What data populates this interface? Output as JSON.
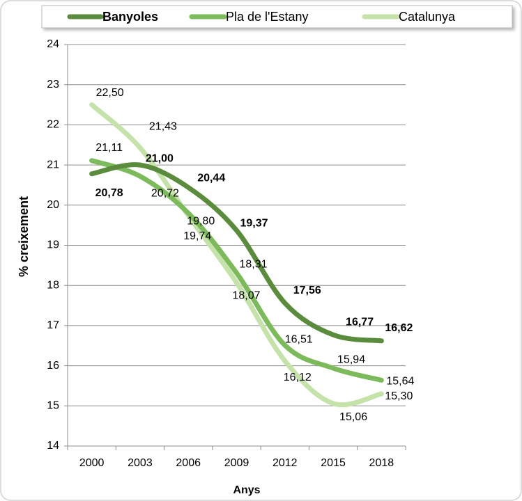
{
  "chart_data": {
    "type": "line",
    "x_label": "Anys",
    "y_label": "% creixement",
    "categories": [
      "2000",
      "2003",
      "2006",
      "2009",
      "2012",
      "2015",
      "2018"
    ],
    "series": [
      {
        "name": "Banyoles",
        "color": "#5b8c3d",
        "bold": true,
        "values": [
          20.78,
          21.0,
          20.44,
          19.37,
          17.56,
          16.77,
          16.62
        ],
        "value_labels": [
          "20,78",
          "21,00",
          "20,44",
          "19,37",
          "17,56",
          "16,77",
          "16,62"
        ]
      },
      {
        "name": "Pla de l'Estany",
        "color": "#7cba5c",
        "bold": false,
        "values": [
          21.11,
          20.72,
          19.8,
          18.31,
          16.51,
          15.94,
          15.64
        ],
        "value_labels": [
          "21,11",
          "20,72",
          "19,80",
          "18,31",
          "16,51",
          "15,94",
          "15,64"
        ]
      },
      {
        "name": "Catalunya",
        "color": "#c5e2ab",
        "bold": false,
        "values": [
          22.5,
          21.43,
          19.74,
          18.07,
          16.12,
          15.06,
          15.3
        ],
        "value_labels": [
          "22,50",
          "21,43",
          "19,74",
          "18,07",
          "16,12",
          "15,06",
          "15,30"
        ]
      }
    ],
    "ylim": [
      14,
      24
    ],
    "yticks": [
      14,
      15,
      16,
      17,
      18,
      19,
      20,
      21,
      22,
      23,
      24
    ],
    "grid": true,
    "legend": "top"
  }
}
